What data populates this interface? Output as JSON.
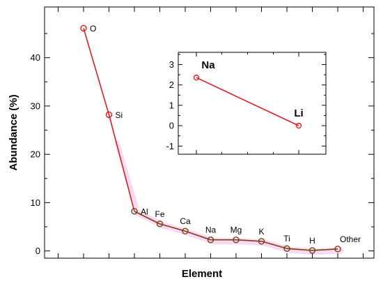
{
  "chart_data": [
    {
      "type": "line",
      "title": "",
      "xlabel": "Element",
      "ylabel": "Abundance (%)",
      "ylim": [
        -1.5,
        50.5
      ],
      "yticks": [
        0,
        10,
        20,
        30,
        40
      ],
      "grid": false,
      "categories": [
        "O",
        "Si",
        "Al",
        "Fe",
        "Ca",
        "Na",
        "Mg",
        "K",
        "Ti",
        "H",
        "Other"
      ],
      "series": [
        {
          "values": [
            46.1,
            28.2,
            8.2,
            5.6,
            4.1,
            2.3,
            2.3,
            2.0,
            0.5,
            0.1,
            0.4
          ],
          "line_colors": [
            "#e0191f",
            "#e0191f",
            "#7b3f12",
            "#7b3f12",
            "#7b3f12",
            "#7b3f12",
            "#7b3f12",
            "#7b3f12",
            "#7b3f12",
            "#7b3f12"
          ],
          "marker_colors": [
            "#e0191f",
            "#e0191f",
            "#7b3f12",
            "#7b3f12",
            "#7b3f12",
            "#7b3f12",
            "#7b3f12",
            "#7b3f12",
            "#7b3f12",
            "#7b3f12",
            "#7b3f12"
          ]
        }
      ],
      "shadow_color": "#f7d9f3"
    },
    {
      "type": "line",
      "title": "",
      "xlabel": "",
      "ylabel": "",
      "ylim": [
        -1.4,
        3.6
      ],
      "yticks": [
        -1,
        0,
        1,
        2,
        3
      ],
      "grid": false,
      "categories": [
        "Na",
        "Li"
      ],
      "series": [
        {
          "values": [
            2.36,
            0.0
          ],
          "color": "#e0191f"
        }
      ]
    }
  ]
}
